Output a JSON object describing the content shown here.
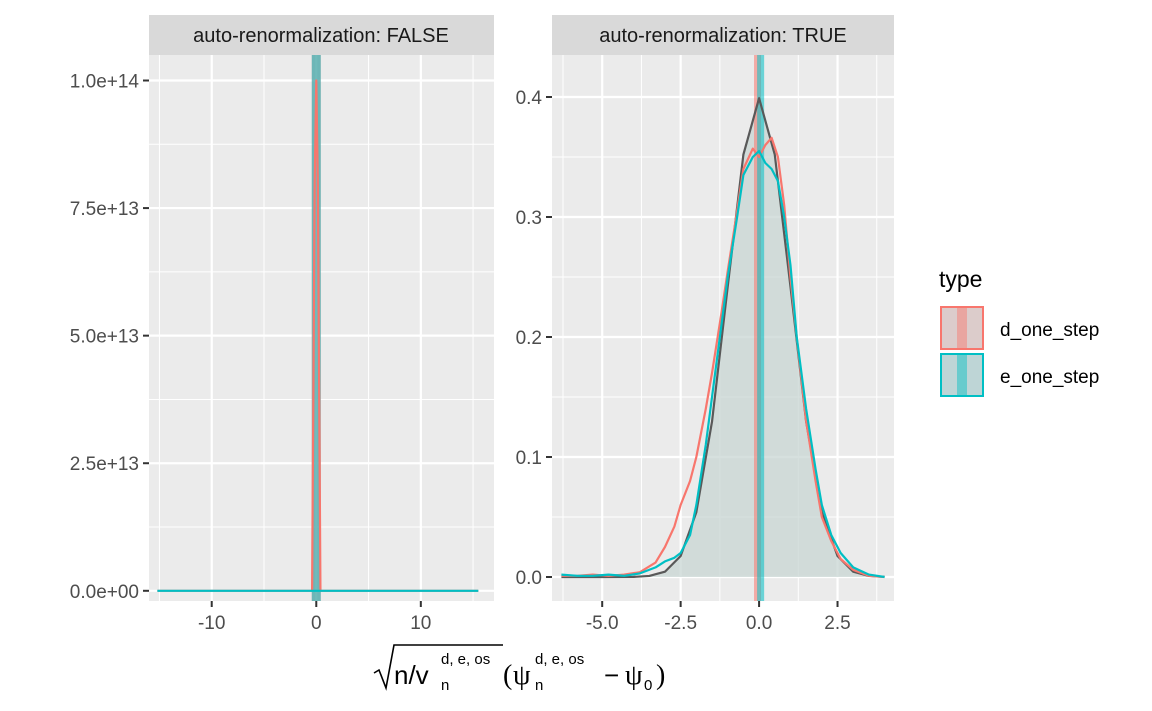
{
  "chart_data": [
    {
      "type": "line",
      "panel": "auto-renormalization: FALSE",
      "strip_label": "auto-renormalization: FALSE",
      "xlim": [
        -16,
        17
      ],
      "ylim": [
        -2000000000000.0,
        105000000000000.0
      ],
      "x_ticks": [
        -10,
        0,
        10
      ],
      "x_tick_labels": [
        "-10",
        "0",
        "10"
      ],
      "y_ticks": [
        0,
        25000000000000.0,
        50000000000000.0,
        75000000000000.0,
        100000000000000.0
      ],
      "y_tick_labels": [
        "0.0e+00",
        "2.5e+13",
        "5.0e+13",
        "7.5e+13",
        "1.0e+14"
      ],
      "grid": true,
      "series": [
        {
          "name": "d_one_step",
          "color": "#F8766D",
          "x": [
            -15.2,
            -10,
            -5,
            -0.4,
            -0.15,
            0,
            0.15,
            0.4,
            5,
            10,
            15.5
          ],
          "y": [
            0,
            0,
            0,
            0,
            80000000000000.0,
            100000000000000.0,
            80000000000000.0,
            0,
            0,
            0,
            0
          ]
        },
        {
          "name": "e_one_step",
          "color": "#00BFC4",
          "x": [
            -15.2,
            -10,
            -5,
            -0.5,
            0,
            0.5,
            5,
            10,
            15.5
          ],
          "y": [
            0,
            0,
            0,
            0,
            0,
            0,
            0,
            0,
            0
          ]
        }
      ],
      "vlines": [
        {
          "series": "d_one_step",
          "x": 0,
          "color": "#F8766D"
        },
        {
          "series": "e_one_step",
          "x": 0,
          "color": "#00BFC4"
        }
      ]
    },
    {
      "type": "line",
      "panel": "auto-renormalization: TRUE",
      "strip_label": "auto-renormalization: TRUE",
      "xlim": [
        -6.6,
        4.3
      ],
      "ylim": [
        -0.02,
        0.435
      ],
      "x_ticks": [
        -5,
        -2.5,
        0,
        2.5
      ],
      "x_tick_labels": [
        "-5.0",
        "-2.5",
        "0.0",
        "2.5"
      ],
      "y_ticks": [
        0,
        0.1,
        0.2,
        0.3,
        0.4
      ],
      "y_tick_labels": [
        "0.0",
        "0.1",
        "0.2",
        "0.3",
        "0.4"
      ],
      "grid": true,
      "series": [
        {
          "name": "reference normal density",
          "color": "#595959",
          "x": [
            -6.3,
            -5,
            -4,
            -3.5,
            -3,
            -2.5,
            -2,
            -1.5,
            -1,
            -0.5,
            0,
            0.5,
            1,
            1.5,
            2,
            2.5,
            3,
            3.5,
            4
          ],
          "y": [
            0,
            0,
            0.0001,
            0.0009,
            0.0044,
            0.0175,
            0.054,
            0.1295,
            0.242,
            0.352,
            0.399,
            0.352,
            0.242,
            0.1295,
            0.054,
            0.0175,
            0.0044,
            0.0009,
            0.0001
          ]
        },
        {
          "name": "d_one_step",
          "color": "#F8766D",
          "x": [
            -6.3,
            -5.8,
            -5.3,
            -4.8,
            -4.3,
            -3.8,
            -3.3,
            -3,
            -2.7,
            -2.5,
            -2.2,
            -2,
            -1.7,
            -1.5,
            -1.2,
            -1,
            -0.7,
            -0.5,
            -0.2,
            0,
            0.2,
            0.4,
            0.6,
            0.8,
            1,
            1.2,
            1.5,
            1.8,
            2,
            2.3,
            2.6,
            3,
            3.5,
            4
          ],
          "y": [
            0.001,
            0.001,
            0.002,
            0.001,
            0.002,
            0.004,
            0.012,
            0.025,
            0.042,
            0.06,
            0.08,
            0.1,
            0.14,
            0.17,
            0.22,
            0.255,
            0.305,
            0.34,
            0.357,
            0.35,
            0.36,
            0.366,
            0.35,
            0.31,
            0.25,
            0.2,
            0.13,
            0.08,
            0.05,
            0.03,
            0.015,
            0.006,
            0.001,
            0
          ]
        },
        {
          "name": "e_one_step",
          "color": "#00BFC4",
          "x": [
            -6.3,
            -5.8,
            -5.3,
            -4.8,
            -4.3,
            -3.8,
            -3.3,
            -3,
            -2.7,
            -2.5,
            -2.2,
            -2,
            -1.7,
            -1.5,
            -1.2,
            -1,
            -0.7,
            -0.5,
            -0.2,
            0,
            0.2,
            0.4,
            0.6,
            0.8,
            1,
            1.2,
            1.5,
            1.8,
            2,
            2.3,
            2.6,
            3,
            3.5,
            4
          ],
          "y": [
            0.002,
            0.001,
            0.001,
            0.002,
            0.001,
            0.003,
            0.008,
            0.013,
            0.016,
            0.02,
            0.035,
            0.06,
            0.11,
            0.15,
            0.21,
            0.25,
            0.3,
            0.335,
            0.35,
            0.355,
            0.345,
            0.34,
            0.33,
            0.3,
            0.26,
            0.2,
            0.14,
            0.09,
            0.06,
            0.035,
            0.02,
            0.008,
            0.002,
            0
          ]
        }
      ],
      "vlines": [
        {
          "series": "d_one_step",
          "x": -0.05,
          "color": "#F8766D"
        },
        {
          "series": "e_one_step",
          "x": 0.05,
          "color": "#00BFC4"
        }
      ]
    }
  ],
  "x_axis_label": {
    "prefix": "n/v",
    "sub": "n",
    "sup": "d, e, os",
    "psi": "ψ",
    "psi_sub": "n",
    "psi_sup": "d, e, os",
    "minus": "−",
    "psi0": "ψ",
    "psi0_sub": "0"
  },
  "legend": {
    "title": "type",
    "items": [
      {
        "label": "d_one_step",
        "color": "#F8766D"
      },
      {
        "label": "e_one_step",
        "color": "#00BFC4"
      }
    ]
  },
  "colors": {
    "panel_background": "#EBEBEB",
    "strip_background": "#D9D9D9",
    "grid": "#FFFFFF",
    "area_fill": "#C8D5D3"
  }
}
